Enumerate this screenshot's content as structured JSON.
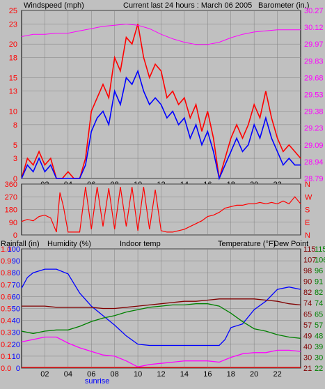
{
  "colors": {
    "wind": "#ff0000",
    "gust_fill": "#ff0000",
    "avg": "#0000ff",
    "baro": "#ff00ff",
    "humidity": "#0000ff",
    "indoor": "#800000",
    "temperature": "#008000",
    "dewpoint": "#ff00ff",
    "rain": "#ff0000",
    "plot_bg": "#c0c0c0",
    "grid": "#808080"
  },
  "header": {
    "left_label": "Windspeed (mph)",
    "center_label": "Current last 24 hours : March 06 2005",
    "right_label": "Barometer (in.)"
  },
  "panel2": {
    "dir_labels": [
      "N",
      "W",
      "S",
      "E",
      "N"
    ]
  },
  "panel3": {
    "labels": {
      "rain": "Rainfall (in)",
      "humidity": "Humidity (%)",
      "indoor": "Indoor temp",
      "temperature": "Temperature (°F)",
      "dewpoint": "Dew Point"
    }
  },
  "sunrise_label": "sunrise",
  "chart_data": [
    {
      "id": "wind_baro",
      "type": "line",
      "x_ticks": [
        "02",
        "04",
        "06",
        "08",
        "10",
        "12",
        "14",
        "16",
        "18",
        "20",
        "22"
      ],
      "x_range_hours": [
        0,
        24
      ],
      "y_left": {
        "label": "Windspeed (mph)",
        "ticks": [
          0,
          3,
          5,
          8,
          10,
          13,
          15,
          18,
          20,
          23,
          25
        ],
        "range": [
          0,
          25
        ]
      },
      "y_right": {
        "label": "Barometer (in.)",
        "ticks": [
          "28.79",
          "28.94",
          "29.09",
          "29.23",
          "29.38",
          "29.53",
          "29.68",
          "29.83",
          "29.97",
          "30.12",
          "30.27"
        ],
        "range": [
          28.79,
          30.27
        ]
      },
      "series": [
        {
          "name": "gust",
          "color": "#ff0000",
          "x": [
            0,
            0.5,
            1,
            1.5,
            2,
            2.5,
            3,
            3.5,
            4,
            4.5,
            5,
            5.5,
            6,
            6.5,
            7,
            7.5,
            8,
            8.5,
            9,
            9.5,
            10,
            10.5,
            11,
            11.5,
            12,
            12.5,
            13,
            13.5,
            14,
            14.5,
            15,
            15.5,
            16,
            16.5,
            17,
            17.5,
            18,
            18.5,
            19,
            19.5,
            20,
            20.5,
            21,
            21.5,
            22,
            22.5,
            23,
            23.5,
            24
          ],
          "y": [
            0,
            3,
            2,
            4,
            2,
            3,
            0,
            0,
            1,
            0,
            0,
            3,
            10,
            12,
            14,
            12,
            18,
            16,
            21,
            20,
            23,
            18,
            15,
            17,
            16,
            12,
            13,
            11,
            12,
            9,
            11,
            7,
            10,
            6,
            0,
            3,
            6,
            8,
            6,
            8,
            11,
            9,
            13,
            9,
            6,
            4,
            5,
            4,
            3
          ]
        },
        {
          "name": "average",
          "color": "#0000ff",
          "x": [
            0,
            0.5,
            1,
            1.5,
            2,
            2.5,
            3,
            3.5,
            4,
            4.5,
            5,
            5.5,
            6,
            6.5,
            7,
            7.5,
            8,
            8.5,
            9,
            9.5,
            10,
            10.5,
            11,
            11.5,
            12,
            12.5,
            13,
            13.5,
            14,
            14.5,
            15,
            15.5,
            16,
            16.5,
            17,
            17.5,
            18,
            18.5,
            19,
            19.5,
            20,
            20.5,
            21,
            21.5,
            22,
            22.5,
            23,
            23.5,
            24
          ],
          "y": [
            0,
            2,
            1,
            3,
            1,
            2,
            0,
            0,
            0,
            0,
            0,
            2,
            7,
            9,
            10,
            8,
            13,
            11,
            15,
            14,
            16,
            13,
            11,
            12,
            11,
            9,
            10,
            8,
            9,
            6,
            8,
            5,
            7,
            4,
            0,
            2,
            4,
            6,
            4,
            5,
            8,
            6,
            9,
            6,
            4,
            2,
            3,
            2,
            2
          ]
        },
        {
          "name": "barometer",
          "color": "#ff00ff",
          "x": [
            0,
            1,
            2,
            3,
            4,
            5,
            6,
            7,
            8,
            9,
            10,
            11,
            12,
            13,
            14,
            15,
            16,
            17,
            18,
            19,
            20,
            21,
            22,
            23,
            24
          ],
          "y": [
            30.04,
            30.06,
            30.06,
            30.07,
            30.07,
            30.09,
            30.11,
            30.13,
            30.14,
            30.15,
            30.14,
            30.11,
            30.06,
            30.02,
            29.99,
            29.97,
            29.97,
            29.99,
            30.03,
            30.06,
            30.08,
            30.09,
            30.1,
            30.1,
            30.1
          ]
        }
      ]
    },
    {
      "id": "wind_direction",
      "type": "line",
      "x_ticks": [
        "02",
        "04",
        "06",
        "08",
        "10",
        "12",
        "14",
        "16",
        "18",
        "20",
        "22"
      ],
      "x_range_hours": [
        0,
        24
      ],
      "y_left": {
        "ticks": [
          0,
          90,
          180,
          270,
          360
        ],
        "range": [
          0,
          360
        ]
      },
      "series": [
        {
          "name": "direction",
          "color": "#ff0000",
          "x": [
            0,
            0.5,
            1,
            1.5,
            2,
            2.5,
            3,
            3.3,
            3.6,
            4,
            4.5,
            5,
            5.5,
            6,
            6.5,
            7,
            7.5,
            8,
            8.5,
            9,
            9.5,
            10,
            10.5,
            11,
            11.5,
            12,
            12.5,
            13,
            13.5,
            14,
            14.5,
            15,
            15.5,
            16,
            16.5,
            17,
            17.5,
            18,
            18.5,
            19,
            19.5,
            20,
            20.5,
            21,
            21.5,
            22,
            22.5,
            23,
            23.5,
            24
          ],
          "y": [
            95,
            110,
            100,
            130,
            140,
            120,
            20,
            300,
            200,
            20,
            20,
            20,
            340,
            40,
            340,
            60,
            330,
            40,
            340,
            60,
            340,
            30,
            340,
            40,
            320,
            30,
            20,
            20,
            30,
            40,
            60,
            80,
            100,
            130,
            140,
            160,
            190,
            200,
            210,
            210,
            220,
            220,
            230,
            220,
            230,
            220,
            240,
            220,
            270,
            220
          ]
        }
      ]
    },
    {
      "id": "temps_humidity",
      "type": "line",
      "x_ticks": [
        "02",
        "04",
        "06",
        "08",
        "10",
        "12",
        "14",
        "16",
        "18",
        "20",
        "22"
      ],
      "x_range_hours": [
        0,
        24
      ],
      "y_rain": {
        "label": "Rainfall (in)",
        "ticks": [
          "0.0",
          "0.1",
          "0.2",
          "0.3",
          "0.4",
          "0.5",
          "0.6",
          "0.7",
          "0.8",
          "0.9",
          "1.0"
        ],
        "range": [
          0,
          1
        ]
      },
      "y_humidity": {
        "label": "Humidity (%)",
        "ticks": [
          0,
          10,
          20,
          30,
          40,
          50,
          60,
          70,
          80,
          90,
          100
        ],
        "range": [
          0,
          100
        ]
      },
      "y_temp_a": {
        "ticks": [
          21,
          30,
          40,
          49,
          57,
          65,
          74,
          82,
          90,
          98,
          107,
          115
        ],
        "range": [
          21,
          115
        ]
      },
      "y_temp_b": {
        "ticks": [
          22,
          30,
          39,
          48,
          57,
          65,
          74,
          82,
          91,
          96,
          106,
          115
        ],
        "range": [
          22,
          115
        ]
      },
      "series": [
        {
          "name": "Humidity (%)",
          "color": "#0000ff",
          "x": [
            0,
            0.5,
            1,
            2,
            3,
            4,
            5,
            6,
            7,
            8,
            9,
            10,
            11,
            12,
            13,
            14,
            15,
            16,
            17,
            17.5,
            18,
            19,
            20,
            21,
            22,
            23,
            24
          ],
          "y": [
            67,
            76,
            80,
            83,
            83,
            79,
            63,
            52,
            44,
            36,
            27,
            20,
            19,
            19,
            19,
            19,
            19,
            19,
            19,
            24,
            34,
            37,
            49,
            56,
            66,
            68,
            66
          ]
        },
        {
          "name": "Indoor temp",
          "color": "#800000",
          "x": [
            0,
            1,
            2,
            3,
            4,
            5,
            6,
            7,
            8,
            9,
            10,
            11,
            12,
            13,
            14,
            15,
            16,
            17,
            18,
            19,
            20,
            21,
            22,
            23,
            24
          ],
          "y": [
            52,
            52,
            52,
            51,
            51,
            51,
            51,
            50,
            50,
            51,
            52,
            53,
            54,
            55,
            56,
            56,
            57,
            58,
            58,
            58,
            58,
            57,
            56,
            54,
            53
          ]
        },
        {
          "name": "Temperature (°F)",
          "color": "#008000",
          "x": [
            0,
            1,
            2,
            3,
            4,
            5,
            6,
            7,
            8,
            9,
            10,
            11,
            12,
            13,
            14,
            15,
            16,
            17,
            18,
            19,
            20,
            21,
            22,
            23,
            24
          ],
          "y": [
            31,
            29,
            31,
            32,
            32,
            35,
            39,
            42,
            44,
            47,
            49,
            51,
            52,
            53,
            53,
            54,
            54,
            52,
            46,
            39,
            33,
            31,
            28,
            26,
            25
          ]
        },
        {
          "name": "Dew Point",
          "color": "#ff00ff",
          "x": [
            0,
            1,
            2,
            3,
            4,
            5,
            6,
            7,
            8,
            9,
            10,
            11,
            12,
            13,
            14,
            15,
            16,
            17,
            18,
            19,
            20,
            21,
            22,
            23,
            24
          ],
          "y": [
            22,
            24,
            26,
            26,
            21,
            17,
            14,
            11,
            10,
            6,
            1,
            3,
            4,
            5,
            6,
            6,
            6,
            5,
            9,
            12,
            13,
            13,
            15,
            15,
            14
          ]
        },
        {
          "name": "Rainfall (in)",
          "color": "#ff0000",
          "x": [
            0,
            24
          ],
          "y": [
            0,
            0
          ]
        }
      ]
    }
  ]
}
